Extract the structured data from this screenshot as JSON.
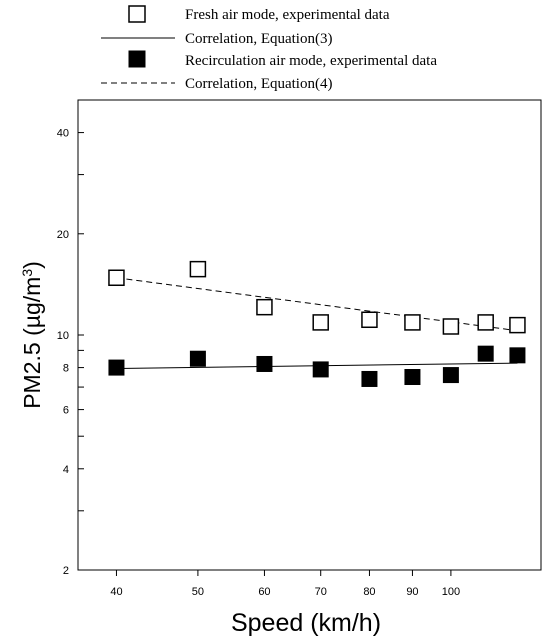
{
  "chart_data": {
    "type": "scatter",
    "xlabel": "Speed (km/h)",
    "ylabel": {
      "prefix": "PM2.5 (µg/m",
      "sup": "3",
      "suffix": ")"
    },
    "x_scale": "log",
    "y_scale": "log",
    "xlim": [
      36,
      128
    ],
    "ylim": [
      2,
      50
    ],
    "xticks": [
      {
        "value": 40,
        "label": "40"
      },
      {
        "value": 50,
        "label": "50"
      },
      {
        "value": 60,
        "label": "60"
      },
      {
        "value": 70,
        "label": "70"
      },
      {
        "value": 80,
        "label": "80"
      },
      {
        "value": 90,
        "label": "90"
      },
      {
        "value": 100,
        "label": "100"
      }
    ],
    "yticks": [
      {
        "value": 2,
        "label": "2"
      },
      {
        "value": 3,
        "label": ""
      },
      {
        "value": 4,
        "label": "4"
      },
      {
        "value": 5,
        "label": ""
      },
      {
        "value": 6,
        "label": "6"
      },
      {
        "value": 7,
        "label": ""
      },
      {
        "value": 8,
        "label": "8"
      },
      {
        "value": 9,
        "label": ""
      },
      {
        "value": 10,
        "label": "10"
      },
      {
        "value": 20,
        "label": "20"
      },
      {
        "value": 30,
        "label": ""
      },
      {
        "value": 40,
        "label": "40"
      }
    ],
    "grid": false,
    "legend_position": "top",
    "series": [
      {
        "name": "Fresh air mode, experimental data",
        "kind": "scatter",
        "marker": "open-square",
        "x": [
          40,
          50,
          60,
          70,
          80,
          90,
          100,
          110,
          120
        ],
        "y": [
          14.8,
          15.7,
          12.1,
          10.9,
          11.1,
          10.9,
          10.6,
          10.9,
          10.7
        ]
      },
      {
        "name": "Correlation, Equation(3)",
        "kind": "line",
        "style": "solid",
        "x": [
          40,
          120
        ],
        "y": [
          7.95,
          8.25
        ]
      },
      {
        "name": "Recirculation air mode, experimental data",
        "kind": "scatter",
        "marker": "filled-square",
        "x": [
          40,
          50,
          60,
          70,
          80,
          90,
          100,
          110,
          120
        ],
        "y": [
          8.0,
          8.5,
          8.2,
          7.9,
          7.4,
          7.5,
          7.6,
          8.8,
          8.7
        ]
      },
      {
        "name": "Correlation, Equation(4)",
        "kind": "line",
        "style": "dashed",
        "x": [
          40,
          120
        ],
        "y": [
          14.8,
          10.3
        ]
      }
    ]
  }
}
